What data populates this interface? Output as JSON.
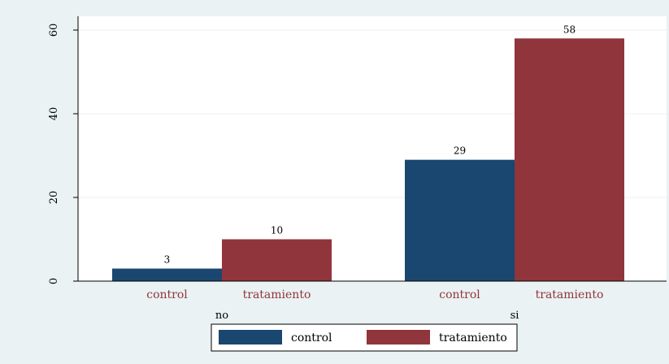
{
  "chart_data": {
    "type": "bar",
    "groups": [
      "no",
      "si"
    ],
    "series": [
      {
        "name": "control",
        "values": [
          3,
          29
        ]
      },
      {
        "name": "tratamiento",
        "values": [
          10,
          58
        ]
      }
    ],
    "category_labels": [
      "control",
      "tratamiento"
    ],
    "ylim": [
      0,
      60
    ],
    "yticks": [
      0,
      20,
      40,
      60
    ],
    "grid": true,
    "legend_position": "bottom",
    "bar_value_labels": true
  },
  "colors": {
    "control": "#1a476f",
    "tratamiento": "#90353b",
    "category_label": "#90353b",
    "grid": "#eaf2f3",
    "plot_background": "#ffffff",
    "outer_background": "#eaf2f3"
  }
}
